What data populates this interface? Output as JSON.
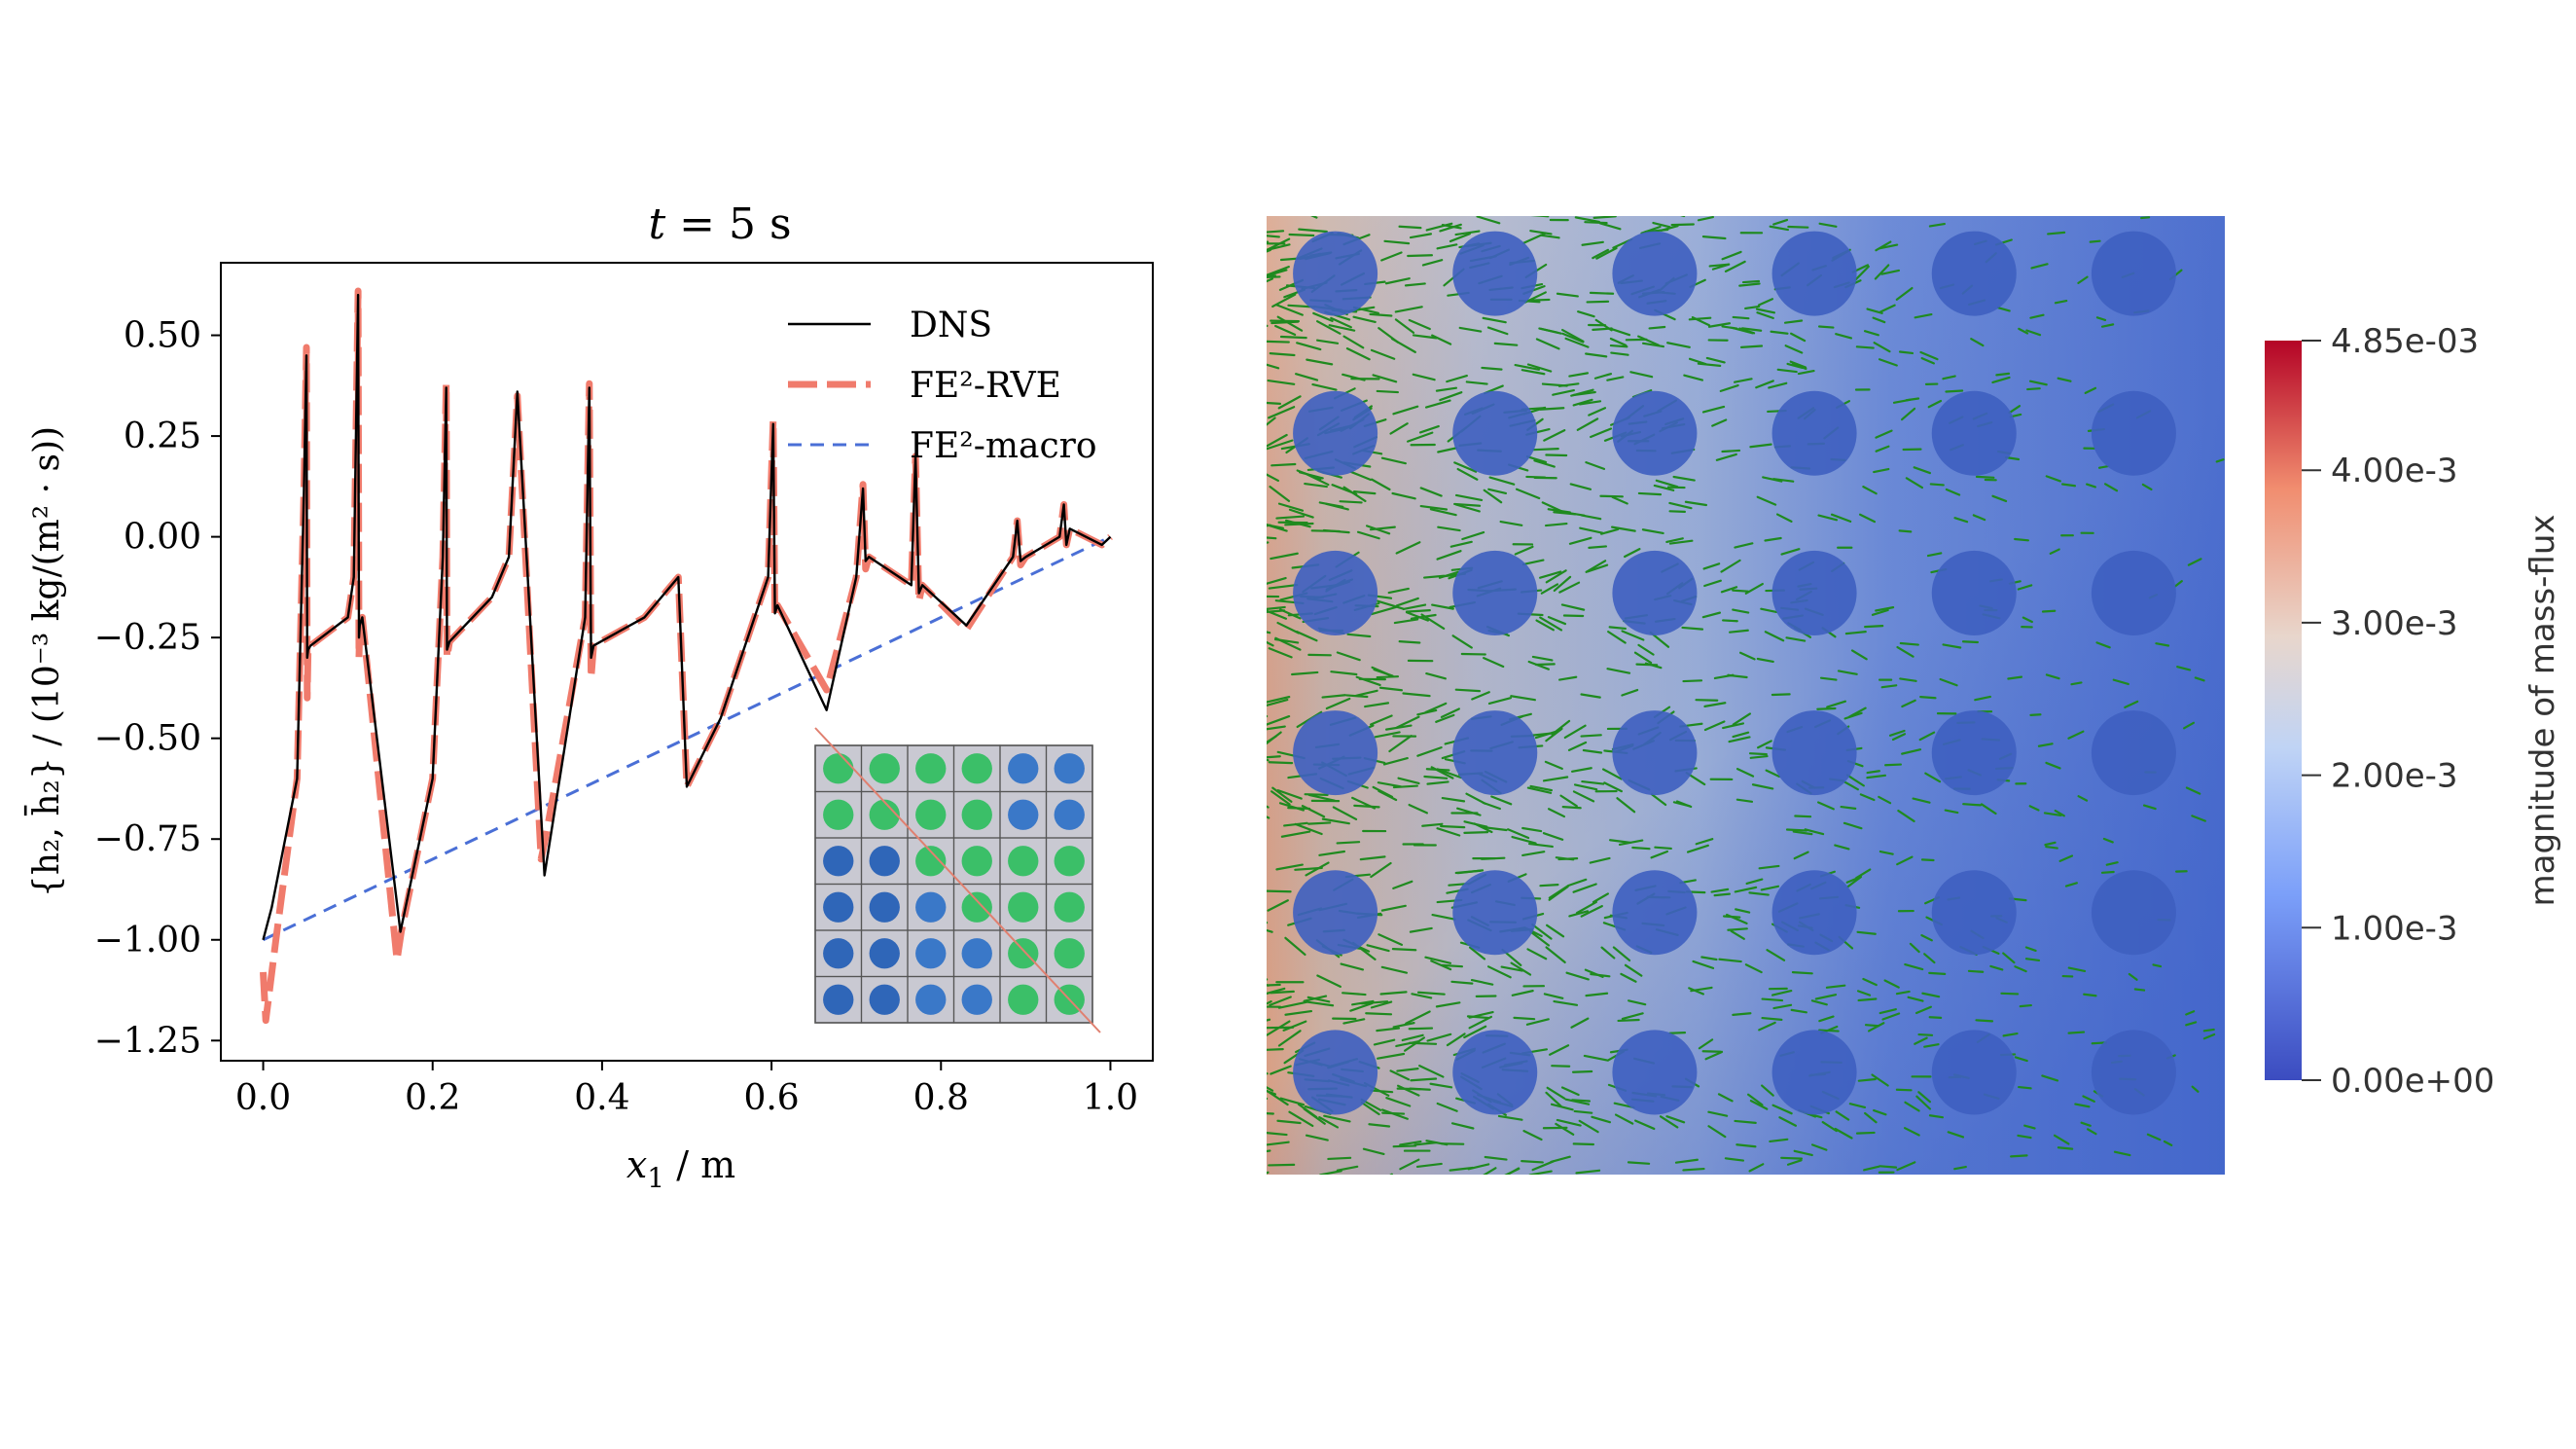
{
  "chart_data": [
    {
      "type": "line",
      "title_var": "t",
      "title_rest": " = 5 s",
      "xlabel_var": "x",
      "xlabel_sub": "1",
      "xlabel_rest": " / m",
      "ylabel": "{h₂, h̄₂} / (10⁻³ kg/(m² · s))",
      "xlim": [
        -0.05,
        1.05
      ],
      "ylim": [
        -1.3,
        0.68
      ],
      "xticks": [
        0.0,
        0.2,
        0.4,
        0.6,
        0.8,
        1.0
      ],
      "xtick_labels": [
        "0.0",
        "0.2",
        "0.4",
        "0.6",
        "0.8",
        "1.0"
      ],
      "yticks": [
        0.5,
        0.25,
        0.0,
        -0.25,
        -0.5,
        -0.75,
        -1.0,
        -1.25
      ],
      "ytick_labels": [
        "0.50",
        "0.25",
        "0.00",
        "−0.25",
        "−0.50",
        "−0.75",
        "−1.00",
        "−1.25"
      ],
      "legend_position": "top-right",
      "series": [
        {
          "name": "DNS",
          "color": "#000000",
          "style": "solid"
        },
        {
          "name": "FE²-RVE",
          "color": "#f07b6c",
          "style": "dashed-thick"
        },
        {
          "name": "FE²-macro",
          "color": "#4a6fd6",
          "style": "dashed-thin",
          "x": [
            0.0,
            1.0
          ],
          "y": [
            -1.0,
            0.0
          ]
        }
      ],
      "dns_key_points": {
        "x": [
          0.0,
          0.01,
          0.04,
          0.048,
          0.051,
          0.052,
          0.053,
          0.056,
          0.1,
          0.107,
          0.112,
          0.113,
          0.114,
          0.117,
          0.162,
          0.2,
          0.212,
          0.216,
          0.217,
          0.22,
          0.27,
          0.29,
          0.3,
          0.332,
          0.38,
          0.385,
          0.387,
          0.39,
          0.45,
          0.49,
          0.5,
          0.54,
          0.596,
          0.602,
          0.604,
          0.607,
          0.665,
          0.7,
          0.708,
          0.711,
          0.715,
          0.765,
          0.77,
          0.774,
          0.778,
          0.83,
          0.885,
          0.89,
          0.894,
          0.9,
          0.94,
          0.945,
          0.948,
          0.952,
          0.99,
          1.0
        ],
        "y": [
          -1.0,
          -0.92,
          -0.6,
          0.1,
          0.45,
          -0.3,
          -0.28,
          -0.27,
          -0.2,
          -0.1,
          0.6,
          -0.25,
          -0.22,
          -0.2,
          -0.98,
          -0.6,
          -0.05,
          0.37,
          -0.28,
          -0.26,
          -0.15,
          -0.05,
          0.36,
          -0.84,
          -0.2,
          0.37,
          -0.3,
          -0.27,
          -0.2,
          -0.1,
          -0.62,
          -0.45,
          -0.1,
          0.28,
          -0.19,
          -0.17,
          -0.43,
          -0.1,
          0.12,
          -0.06,
          -0.05,
          -0.12,
          0.2,
          -0.14,
          -0.12,
          -0.22,
          -0.05,
          0.04,
          -0.06,
          -0.05,
          0.0,
          0.08,
          -0.02,
          0.02,
          -0.02,
          0.0
        ]
      },
      "rve_key_points": {
        "x": [
          0.0,
          0.003,
          0.006,
          0.015,
          0.04,
          0.048,
          0.051,
          0.052,
          0.053,
          0.056,
          0.1,
          0.107,
          0.112,
          0.113,
          0.114,
          0.117,
          0.158,
          0.163,
          0.2,
          0.212,
          0.216,
          0.217,
          0.22,
          0.27,
          0.29,
          0.3,
          0.328,
          0.333,
          0.38,
          0.385,
          0.387,
          0.39,
          0.45,
          0.49,
          0.5,
          0.54,
          0.596,
          0.602,
          0.604,
          0.607,
          0.665,
          0.7,
          0.708,
          0.711,
          0.715,
          0.765,
          0.77,
          0.774,
          0.778,
          0.83,
          0.885,
          0.89,
          0.894,
          0.9,
          0.94,
          0.945,
          0.948,
          0.952,
          0.99,
          1.0
        ],
        "y": [
          -1.08,
          -1.2,
          -1.15,
          -1.0,
          -0.6,
          0.1,
          0.47,
          -0.4,
          -0.28,
          -0.27,
          -0.2,
          -0.1,
          0.61,
          -0.3,
          -0.22,
          -0.2,
          -1.05,
          -0.98,
          -0.6,
          -0.05,
          0.38,
          -0.3,
          -0.26,
          -0.15,
          -0.05,
          0.35,
          -0.8,
          -0.75,
          -0.2,
          0.38,
          -0.35,
          -0.27,
          -0.2,
          -0.1,
          -0.62,
          -0.45,
          -0.1,
          0.29,
          -0.2,
          -0.17,
          -0.38,
          -0.1,
          0.13,
          -0.08,
          -0.05,
          -0.12,
          0.2,
          -0.16,
          -0.12,
          -0.23,
          -0.05,
          0.04,
          -0.07,
          -0.05,
          0.0,
          0.08,
          -0.02,
          0.02,
          -0.02,
          0.0
        ]
      }
    },
    {
      "type": "heatmap",
      "grid_rows": 6,
      "grid_cols": 6,
      "colorbar": {
        "label": "magnitude of mass-flux",
        "min": 0.0,
        "max": 0.00485,
        "ticks": [
          0.00485,
          0.004,
          0.003,
          0.002,
          0.001,
          0.0
        ],
        "tick_labels": [
          "4.85e-03",
          "4.00e-3",
          "3.00e-3",
          "2.00e-3",
          "1.00e-3",
          "0.00e+00"
        ],
        "colors": [
          "#b40426",
          "#e8765c",
          "#dddcdc",
          "#aac7fd",
          "#3b4cc0"
        ]
      },
      "vector_color": "#1f8a1f",
      "inclusion_color": "#3e5fc0"
    }
  ]
}
